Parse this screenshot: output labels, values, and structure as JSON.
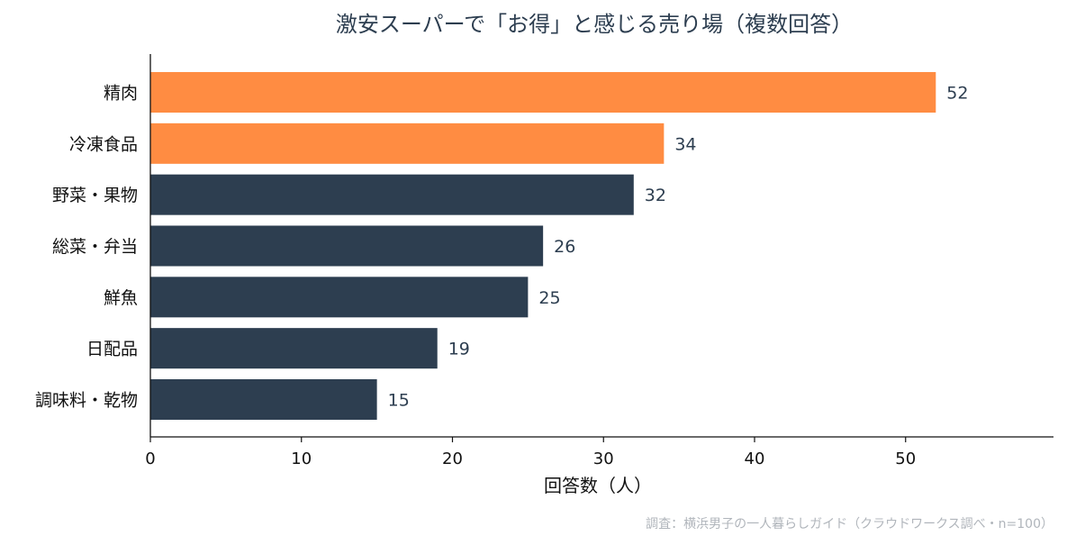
{
  "chart_data": {
    "type": "bar",
    "orientation": "horizontal",
    "title": "激安スーパーで「お得」と感じる売り場（複数回答）",
    "xlabel": "回答数（人）",
    "ylabel": "",
    "categories": [
      "精肉",
      "冷凍食品",
      "野菜・果物",
      "総菜・弁当",
      "鮮魚",
      "日配品",
      "調味料・乾物"
    ],
    "values": [
      52,
      34,
      32,
      26,
      25,
      19,
      15
    ],
    "xlim": [
      0,
      60
    ],
    "xticks": [
      0,
      10,
      20,
      30,
      40,
      50
    ],
    "highlight_count": 2,
    "colors": {
      "highlight": "#ff8c42",
      "default": "#2d3e50"
    },
    "grid": false,
    "source": "調査：横浜男子の一人暮らしガイド（クラウドワークス調べ・n=100）"
  }
}
